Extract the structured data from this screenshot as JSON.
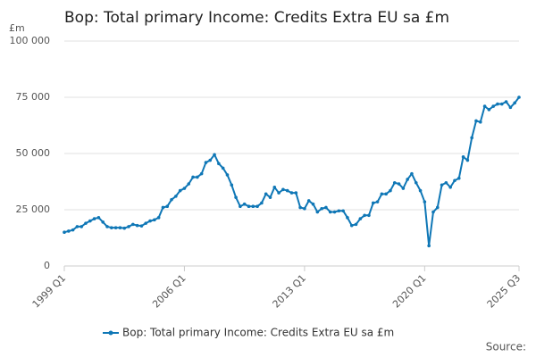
{
  "chart_data": {
    "type": "line",
    "title": "Bop: Total primary Income: Credits Extra EU sa £m",
    "y_label": "£m",
    "source": "Source:",
    "categories": [
      "1999 Q1",
      null,
      null,
      null,
      null,
      null,
      null,
      null,
      null,
      null,
      null,
      null,
      null,
      null,
      null,
      null,
      null,
      null,
      null,
      null,
      null,
      null,
      null,
      null,
      null,
      null,
      null,
      null,
      "2006 Q1",
      null,
      null,
      null,
      null,
      null,
      null,
      null,
      null,
      null,
      null,
      null,
      null,
      null,
      null,
      null,
      null,
      null,
      null,
      null,
      null,
      null,
      null,
      null,
      null,
      null,
      null,
      null,
      "2013 Q1",
      null,
      null,
      null,
      null,
      null,
      null,
      null,
      null,
      null,
      null,
      null,
      null,
      null,
      null,
      null,
      null,
      null,
      null,
      null,
      null,
      null,
      null,
      null,
      null,
      null,
      null,
      null,
      "2020 Q1",
      null,
      null,
      null,
      null,
      null,
      null,
      null,
      null,
      null,
      null,
      null,
      null,
      null,
      null,
      null,
      null,
      null,
      null,
      null,
      null,
      null,
      "2025 Q3"
    ],
    "series": [
      {
        "name": "Bop: Total primary Income: Credits Extra EU sa £m",
        "color": "#0f77b6",
        "values": [
          15000,
          15500,
          16000,
          17500,
          17500,
          19000,
          20000,
          21000,
          21500,
          19500,
          17500,
          17000,
          17000,
          17000,
          16800,
          17500,
          18500,
          18000,
          17800,
          19000,
          20000,
          20500,
          21500,
          26000,
          26500,
          29500,
          31000,
          33500,
          34500,
          36500,
          39500,
          39500,
          41000,
          46000,
          47000,
          49500,
          45500,
          43500,
          40500,
          36000,
          30500,
          26500,
          27500,
          26500,
          26500,
          26500,
          28000,
          32000,
          30500,
          35000,
          32500,
          34000,
          33500,
          32500,
          32500,
          26000,
          25500,
          29000,
          27500,
          24000,
          25500,
          26000,
          24000,
          24000,
          24500,
          24500,
          21500,
          18000,
          18500,
          21000,
          22500,
          22500,
          28000,
          28500,
          32000,
          32000,
          33500,
          37000,
          36500,
          34500,
          38500,
          41000,
          37000,
          33500,
          28500,
          9000,
          24000,
          26000,
          36000,
          37000,
          35000,
          38000,
          39000,
          48500,
          47000,
          57000,
          64500,
          64000,
          71000,
          69500,
          71000,
          72000,
          72000,
          73000,
          70500,
          72500,
          75000
        ]
      }
    ],
    "ylim": [
      0,
      100000
    ],
    "yticks": [
      0,
      {
        "value": 25000,
        "label": "25 000"
      },
      {
        "value": 50000,
        "label": "50 000"
      },
      {
        "value": 75000,
        "label": "75 000"
      },
      {
        "value": 100000,
        "label": "100 000"
      }
    ],
    "grid": true,
    "legend": "bottom"
  }
}
